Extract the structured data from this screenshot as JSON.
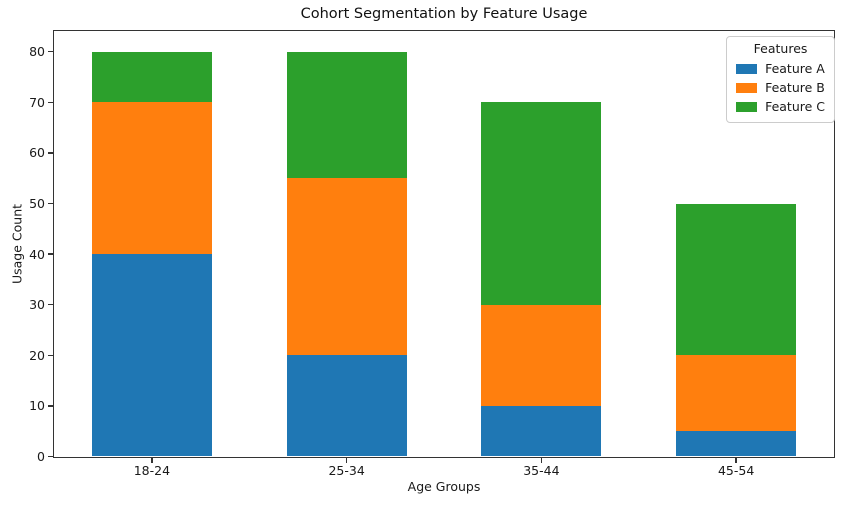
{
  "title": "Cohort Segmentation by Feature Usage",
  "chart_data": {
    "type": "bar",
    "stacked": true,
    "title": "Cohort Segmentation by Feature Usage",
    "xlabel": "Age Groups",
    "ylabel": "Usage Count",
    "categories": [
      "18-24",
      "25-34",
      "35-44",
      "45-54"
    ],
    "series": [
      {
        "name": "Feature A",
        "color": "#1f77b4",
        "values": [
          40,
          20,
          10,
          5
        ]
      },
      {
        "name": "Feature B",
        "color": "#ff7f0e",
        "values": [
          30,
          35,
          20,
          15
        ]
      },
      {
        "name": "Feature C",
        "color": "#2ca02c",
        "values": [
          10,
          25,
          40,
          30
        ]
      }
    ],
    "stack_totals": [
      80,
      80,
      70,
      50
    ],
    "ylim": [
      0,
      84
    ],
    "yticks": [
      0,
      10,
      20,
      30,
      40,
      50,
      60,
      70,
      80
    ],
    "grid": false,
    "legend": {
      "title": "Features",
      "position": "upper right"
    }
  }
}
